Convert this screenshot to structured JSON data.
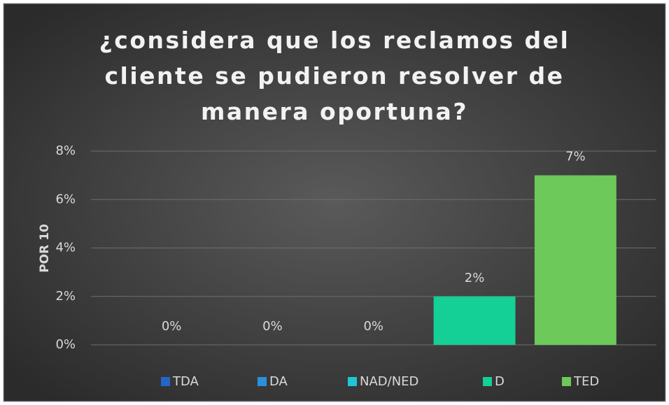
{
  "chart_data": {
    "type": "bar",
    "title": "¿considera que los reclamos del cliente se pudieron resolver de manera oportuna?",
    "y_label": "POR 10",
    "categories": [
      "TDA",
      "DA",
      "NAD/NED",
      "D",
      "TED"
    ],
    "colors": [
      "#2366c8",
      "#2a90dc",
      "#1fc6d6",
      "#14cf96",
      "#6cc95a"
    ],
    "values": [
      0,
      0,
      0,
      2,
      7
    ],
    "value_labels": [
      "0%",
      "0%",
      "0%",
      "2%",
      "7%"
    ],
    "ylim": [
      0,
      8
    ],
    "yticks": [
      {
        "value": 0,
        "label": "0%"
      },
      {
        "value": 2,
        "label": "2%"
      },
      {
        "value": 4,
        "label": "4%"
      },
      {
        "value": 6,
        "label": "6%"
      },
      {
        "value": 8,
        "label": "8%"
      }
    ],
    "grid": true,
    "legend": "bottom"
  }
}
